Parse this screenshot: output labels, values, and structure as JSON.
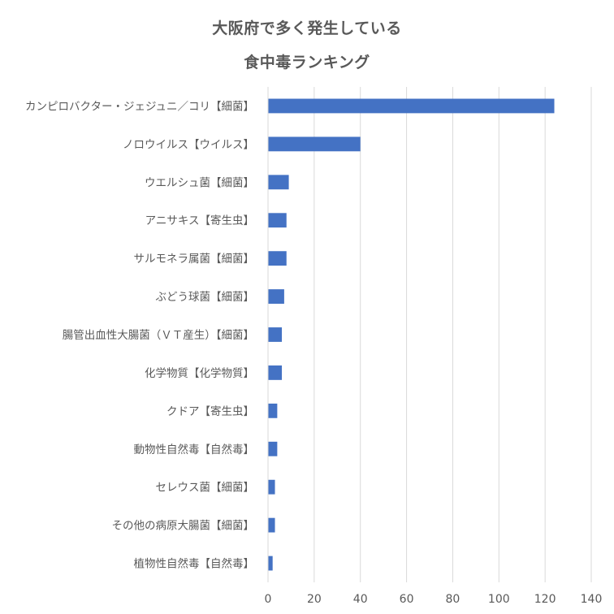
{
  "chart_data": {
    "type": "bar",
    "orientation": "horizontal",
    "title_lines": [
      "大阪府で多く発生している",
      "食中毒ランキング"
    ],
    "categories": [
      "カンピロバクター・ジェジュニ／コリ【細菌】",
      "ノロウイルス【ウイルス】",
      "ウエルシュ菌【細菌】",
      "アニサキス【寄生虫】",
      "サルモネラ属菌【細菌】",
      "ぶどう球菌【細菌】",
      "腸管出血性大腸菌（ＶＴ産生）【細菌】",
      "化学物質【化学物質】",
      "クドア【寄生虫】",
      "動物性自然毒【自然毒】",
      "セレウス菌【細菌】",
      "その他の病原大腸菌【細菌】",
      "植物性自然毒【自然毒】"
    ],
    "values": [
      124,
      40,
      9,
      8,
      8,
      7,
      6,
      6,
      4,
      4,
      3,
      3,
      2
    ],
    "xlim": [
      0,
      140
    ],
    "x_ticks": [
      0,
      20,
      40,
      60,
      80,
      100,
      120,
      140
    ],
    "grid": "vertical",
    "legend": "none",
    "bar_color": "#4472C4",
    "grid_color": "#D9D9D9",
    "text_color": "#595959"
  }
}
